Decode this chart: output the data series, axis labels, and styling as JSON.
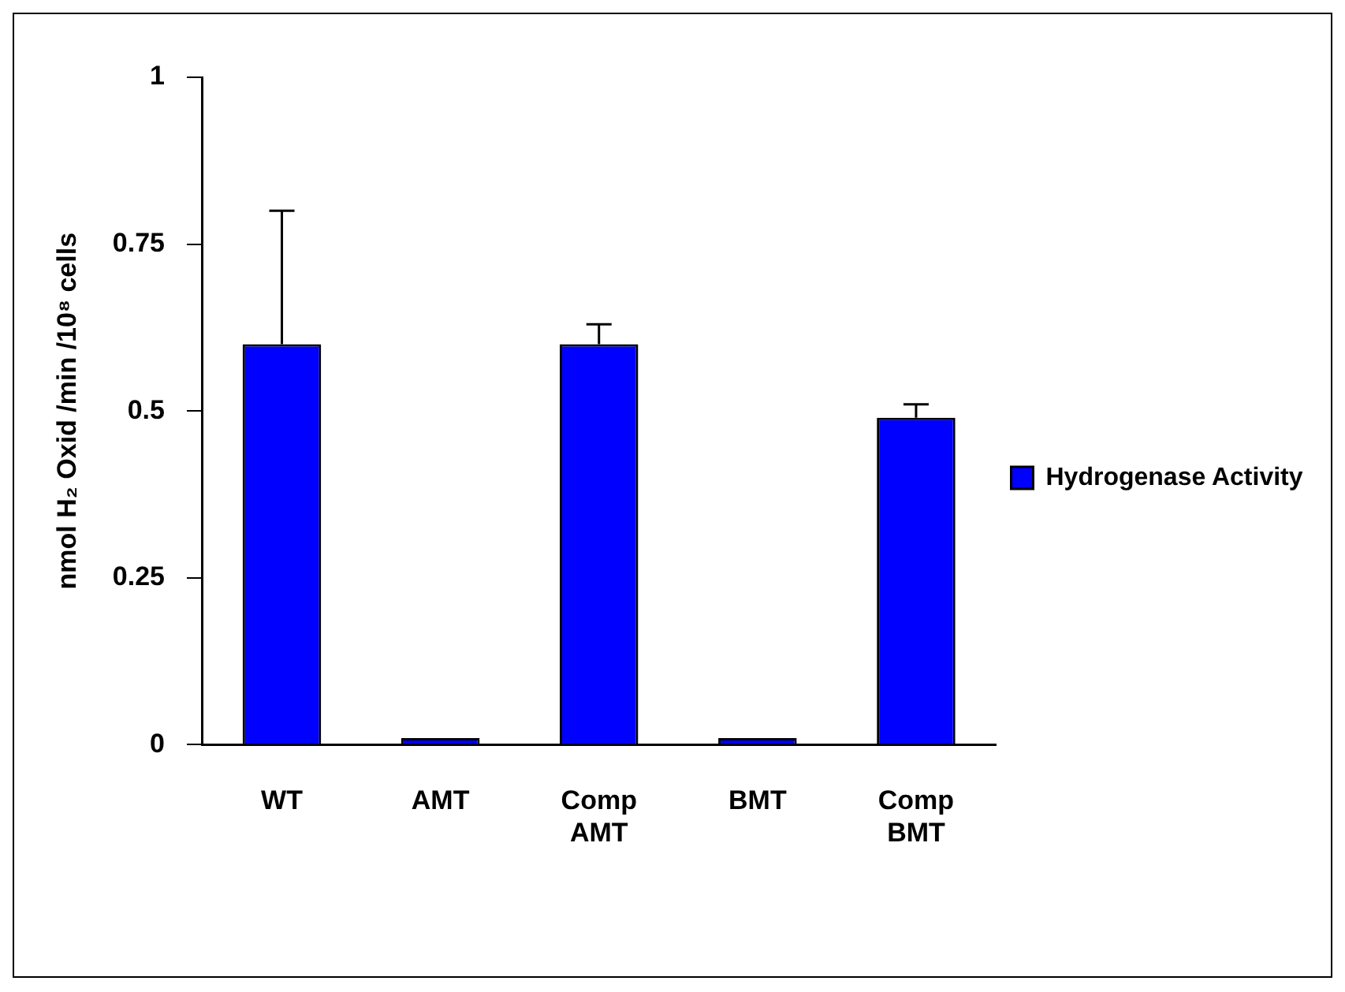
{
  "chart_data": {
    "type": "bar",
    "ylabel": "nmol H₂ Oxid /min /10⁸ cells",
    "categories": [
      "WT",
      "AMT",
      "Comp AMT",
      "BMT",
      "Comp BMT"
    ],
    "series": [
      {
        "name": "Hydrogenase Activity",
        "color": "#0000ff",
        "values": [
          0.6,
          0.01,
          0.6,
          0.01,
          0.49
        ],
        "errors": [
          [
            0.6,
            0.8
          ],
          null,
          [
            0.6,
            0.63
          ],
          null,
          [
            0.49,
            0.51
          ]
        ]
      }
    ],
    "ylim": [
      0,
      1
    ],
    "yticks": [
      0,
      0.25,
      0.5,
      0.75,
      1
    ],
    "grid": false,
    "legend": "right"
  }
}
